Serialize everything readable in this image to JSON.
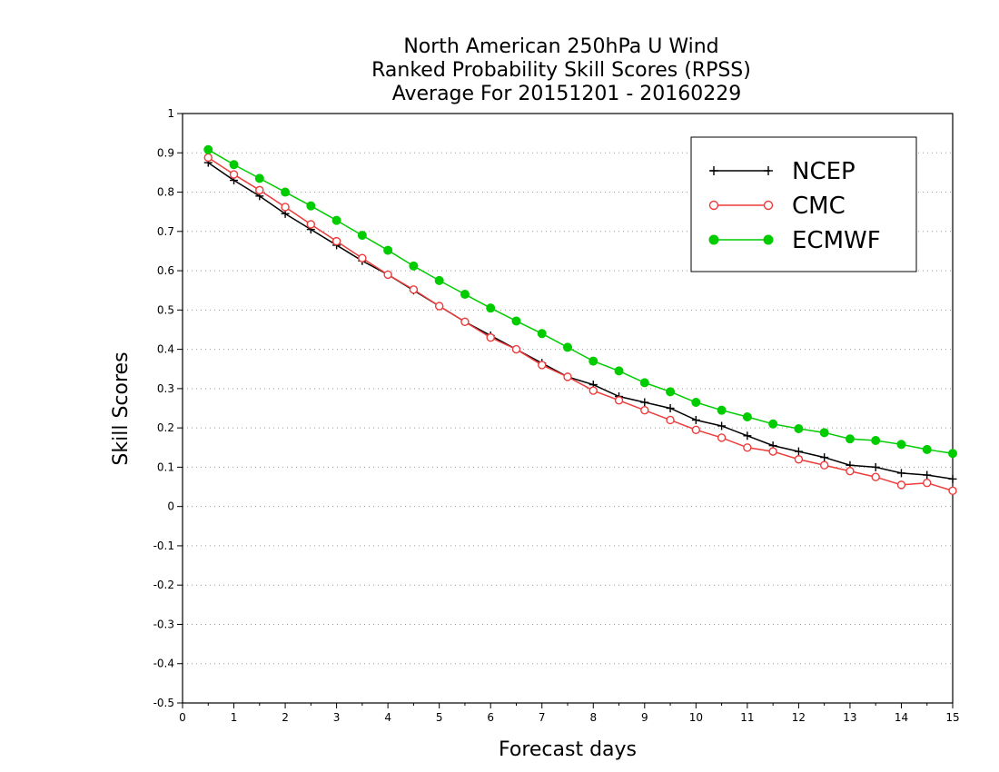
{
  "chart_data": {
    "type": "line",
    "title_lines": [
      "North American 250hPa U Wind",
      "Ranked Probability Skill Scores (RPSS)",
      "Average For 20151201 - 20160229"
    ],
    "xlabel": "Forecast days",
    "ylabel": "Skill Scores",
    "xlim": [
      0,
      15
    ],
    "ylim": [
      -0.5,
      1
    ],
    "xticks": [
      "0",
      "1",
      "2",
      "3",
      "4",
      "5",
      "6",
      "7",
      "8",
      "9",
      "10",
      "11",
      "12",
      "13",
      "14",
      "15"
    ],
    "yticks": [
      "-0.5",
      "-0.4",
      "-0.3",
      "-0.2",
      "-0.1",
      "0",
      "0.1",
      "0.2",
      "0.3",
      "0.4",
      "0.5",
      "0.6",
      "0.7",
      "0.8",
      "0.9",
      "1"
    ],
    "grid": "horizontal dotted",
    "legend_position": "top-right",
    "x": [
      0.5,
      1,
      1.5,
      2,
      2.5,
      3,
      3.5,
      4,
      4.5,
      5,
      5.5,
      6,
      6.5,
      7,
      7.5,
      8,
      8.5,
      9,
      9.5,
      10,
      10.5,
      11,
      11.5,
      12,
      12.5,
      13,
      13.5,
      14,
      14.5,
      15
    ],
    "series": [
      {
        "name": "NCEP",
        "color": "#000000",
        "marker": "plus",
        "values": [
          0.875,
          0.83,
          0.79,
          0.745,
          0.705,
          0.665,
          0.625,
          0.59,
          0.55,
          0.51,
          0.47,
          0.435,
          0.4,
          0.365,
          0.33,
          0.31,
          0.28,
          0.265,
          0.25,
          0.22,
          0.205,
          0.18,
          0.155,
          0.14,
          0.125,
          0.105,
          0.1,
          0.085,
          0.08,
          0.07
        ]
      },
      {
        "name": "CMC",
        "color": "#ee3b3b",
        "marker": "open-circle",
        "values": [
          0.888,
          0.845,
          0.805,
          0.762,
          0.718,
          0.675,
          0.632,
          0.59,
          0.552,
          0.51,
          0.47,
          0.43,
          0.4,
          0.36,
          0.33,
          0.295,
          0.27,
          0.245,
          0.22,
          0.195,
          0.175,
          0.15,
          0.14,
          0.12,
          0.105,
          0.09,
          0.075,
          0.055,
          0.06,
          0.04
        ]
      },
      {
        "name": "ECMWF",
        "color": "#00cc00",
        "marker": "filled-circle",
        "values": [
          0.908,
          0.87,
          0.835,
          0.8,
          0.765,
          0.728,
          0.69,
          0.652,
          0.612,
          0.575,
          0.54,
          0.505,
          0.472,
          0.44,
          0.405,
          0.37,
          0.345,
          0.315,
          0.292,
          0.265,
          0.245,
          0.228,
          0.21,
          0.198,
          0.188,
          0.172,
          0.168,
          0.158,
          0.145,
          0.135
        ]
      }
    ]
  }
}
